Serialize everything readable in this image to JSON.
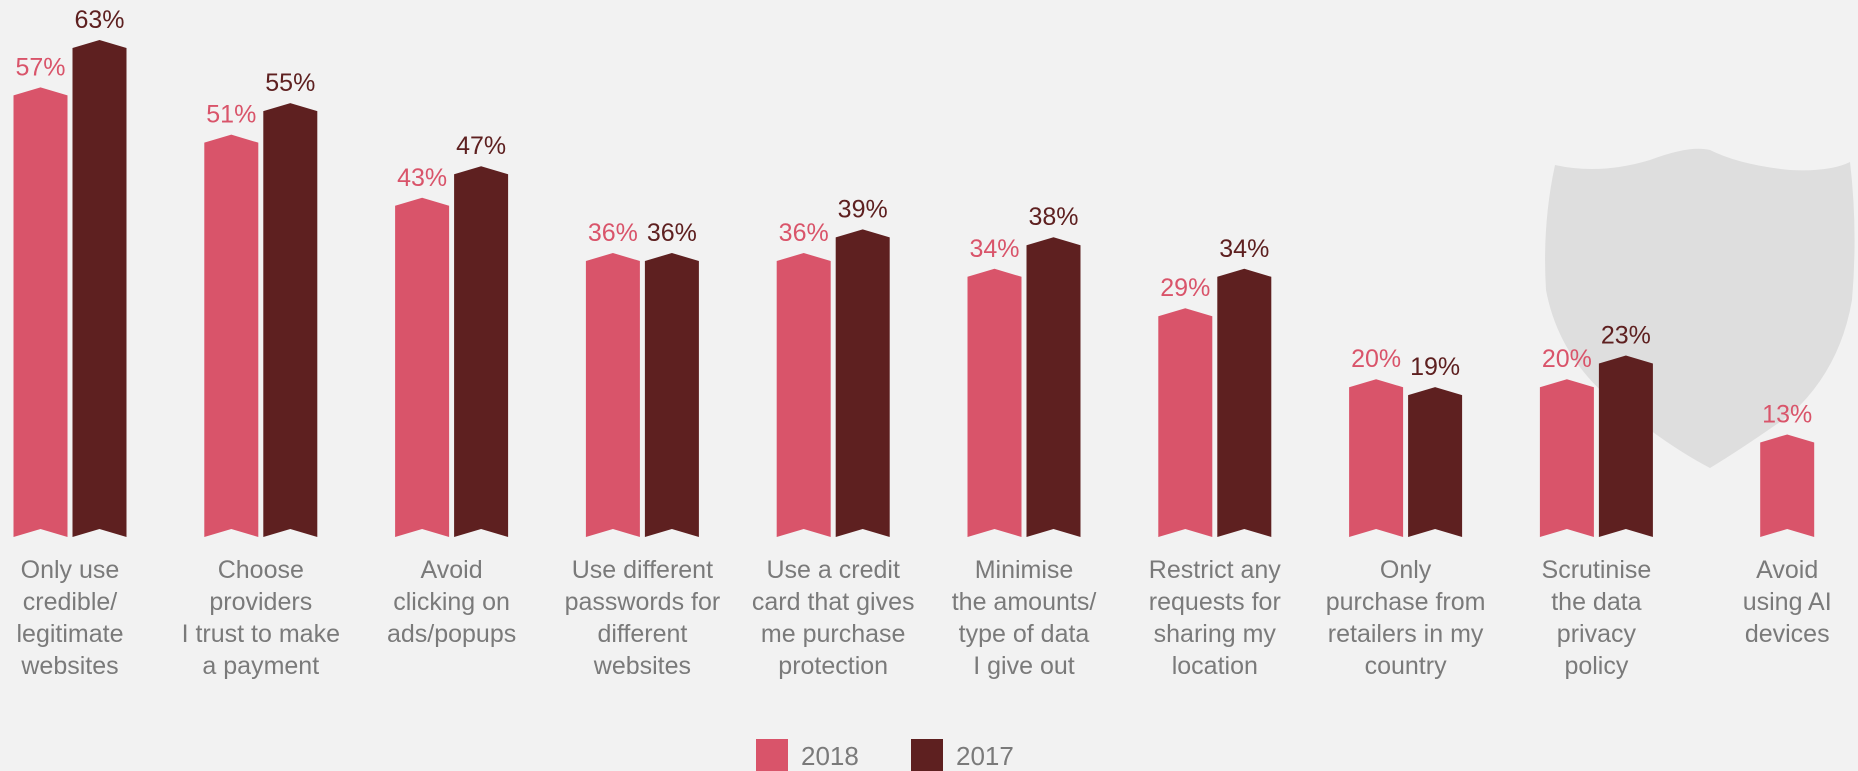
{
  "chart_data": {
    "type": "bar",
    "categories": [
      [
        "Only use",
        "credible/",
        "legitimate",
        "websites"
      ],
      [
        "Choose",
        "providers",
        "I trust to make",
        "a payment"
      ],
      [
        "Avoid",
        "clicking on",
        "ads/popups"
      ],
      [
        "Use different",
        "passwords for",
        "different",
        "websites"
      ],
      [
        "Use a credit",
        "card that gives",
        "me purchase",
        "protection"
      ],
      [
        "Minimise",
        "the amounts/",
        "type of data",
        "I give out"
      ],
      [
        "Restrict any",
        "requests for",
        "sharing my",
        "location"
      ],
      [
        "Only",
        "purchase from",
        "retailers in my",
        "country"
      ],
      [
        "Scrutinise",
        "the data",
        "privacy",
        "policy"
      ],
      [
        "Avoid",
        "using AI",
        "devices"
      ]
    ],
    "series": [
      {
        "name": "2018",
        "color": "#d9546a",
        "values": [
          57,
          51,
          43,
          36,
          36,
          34,
          29,
          20,
          20,
          13
        ],
        "labels": [
          "57%",
          "51%",
          "43%",
          "36%",
          "36%",
          "34%",
          "29%",
          "20%",
          "20%",
          "13%"
        ]
      },
      {
        "name": "2017",
        "color": "#5e2020",
        "values": [
          63,
          55,
          47,
          36,
          39,
          38,
          34,
          19,
          23,
          null
        ],
        "labels": [
          "63%",
          "55%",
          "47%",
          "36%",
          "39%",
          "38%",
          "34%",
          "19%",
          "23%",
          ""
        ]
      }
    ],
    "ylim": [
      0,
      63
    ],
    "legend_position": "bottom-center",
    "grid": false,
    "background_icon": "shield-icon"
  }
}
